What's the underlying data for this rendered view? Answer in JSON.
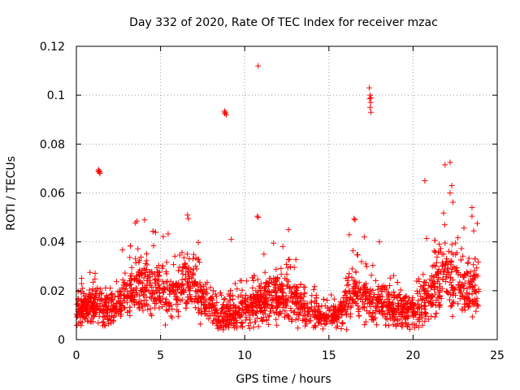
{
  "chart_data": {
    "type": "scatter",
    "title": "Day 332 of 2020, Rate Of TEC Index for receiver mzac",
    "xlabel": "GPS time / hours",
    "ylabel": "ROTI / TECUs",
    "xlim": [
      0,
      25
    ],
    "ylim": [
      0,
      0.12
    ],
    "xticks": [
      0,
      5,
      10,
      15,
      20,
      25
    ],
    "xtick_labels": [
      "0",
      "5",
      "10",
      "15",
      "20",
      "25"
    ],
    "yticks": [
      0,
      0.02,
      0.04,
      0.06,
      0.08,
      0.1,
      0.12
    ],
    "ytick_labels": [
      "0",
      "0.02",
      "0.04",
      "0.06",
      "0.08",
      "0.1",
      "0.12"
    ],
    "grid": true,
    "marker": "+",
    "color": "#ff0000",
    "baseline_profile": {
      "x": [
        0,
        1,
        2,
        3,
        3.8,
        4.5,
        5.5,
        6.6,
        7.5,
        8.5,
        9.5,
        10.5,
        11.5,
        12.5,
        13.5,
        14.5,
        15.5,
        16.3,
        17,
        18,
        19,
        20,
        21,
        22,
        23,
        24
      ],
      "y": [
        0.012,
        0.014,
        0.012,
        0.018,
        0.025,
        0.02,
        0.018,
        0.025,
        0.016,
        0.01,
        0.011,
        0.014,
        0.016,
        0.02,
        0.013,
        0.01,
        0.01,
        0.02,
        0.018,
        0.015,
        0.012,
        0.011,
        0.02,
        0.028,
        0.022,
        0.02
      ],
      "spread": [
        0.005,
        0.006,
        0.006,
        0.008,
        0.01,
        0.009,
        0.008,
        0.01,
        0.007,
        0.005,
        0.006,
        0.007,
        0.008,
        0.009,
        0.006,
        0.004,
        0.004,
        0.01,
        0.008,
        0.007,
        0.006,
        0.006,
        0.01,
        0.012,
        0.011,
        0.01
      ]
    },
    "outliers": [
      {
        "x": 1.3,
        "y": 0.069
      },
      {
        "x": 1.35,
        "y": 0.0685
      },
      {
        "x": 1.4,
        "y": 0.068
      },
      {
        "x": 1.33,
        "y": 0.0695
      },
      {
        "x": 1.38,
        "y": 0.0688
      },
      {
        "x": 8.8,
        "y": 0.0935
      },
      {
        "x": 8.85,
        "y": 0.093
      },
      {
        "x": 8.9,
        "y": 0.092
      },
      {
        "x": 8.82,
        "y": 0.0925
      },
      {
        "x": 10.8,
        "y": 0.112
      },
      {
        "x": 10.75,
        "y": 0.0505
      },
      {
        "x": 10.8,
        "y": 0.05
      },
      {
        "x": 16.5,
        "y": 0.0495
      },
      {
        "x": 16.55,
        "y": 0.049
      },
      {
        "x": 17.4,
        "y": 0.103
      },
      {
        "x": 17.45,
        "y": 0.1
      },
      {
        "x": 17.5,
        "y": 0.099
      },
      {
        "x": 17.42,
        "y": 0.0985
      },
      {
        "x": 17.48,
        "y": 0.097
      },
      {
        "x": 17.45,
        "y": 0.095
      },
      {
        "x": 17.5,
        "y": 0.093
      },
      {
        "x": 20.7,
        "y": 0.065
      },
      {
        "x": 21.9,
        "y": 0.0715
      },
      {
        "x": 22.2,
        "y": 0.0725
      },
      {
        "x": 22.3,
        "y": 0.063
      },
      {
        "x": 22.2,
        "y": 0.06
      },
      {
        "x": 23.5,
        "y": 0.054
      },
      {
        "x": 23.5,
        "y": 0.0505
      },
      {
        "x": 23.6,
        "y": 0.0445
      },
      {
        "x": 12.6,
        "y": 0.045
      },
      {
        "x": 3.6,
        "y": 0.0485
      },
      {
        "x": 4.05,
        "y": 0.049
      },
      {
        "x": 6.6,
        "y": 0.051
      },
      {
        "x": 6.65,
        "y": 0.0495
      },
      {
        "x": 9.2,
        "y": 0.041
      },
      {
        "x": 18,
        "y": 0.04
      },
      {
        "x": 17.1,
        "y": 0.042
      }
    ]
  }
}
